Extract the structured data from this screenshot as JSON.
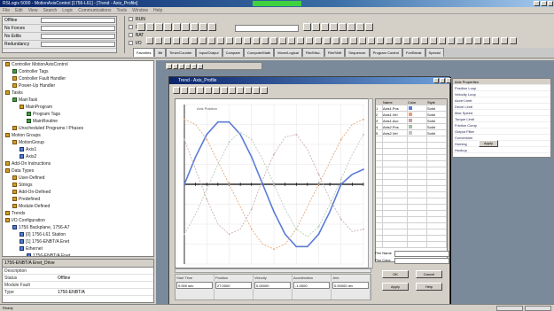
{
  "window": {
    "title": "RSLogix 5000 - MotionAxisControl [1756-L61] - [Trend - Axis_Profile]",
    "accent": "#0a246a",
    "run_indicator_color": "#3fd13f"
  },
  "menu": [
    "File",
    "Edit",
    "View",
    "Search",
    "Logic",
    "Communications",
    "Tools",
    "Window",
    "Help"
  ],
  "status_panel": {
    "rows": [
      {
        "label": "Offline",
        "value": ""
      },
      {
        "label": "No Forces",
        "value": ""
      },
      {
        "label": "No Edits",
        "value": ""
      },
      {
        "label": "Redundancy",
        "value": ""
      }
    ]
  },
  "quick_group": {
    "options": [
      "RUN",
      "OK",
      "BAT",
      "I/O"
    ]
  },
  "address_box": "",
  "tabs": [
    "Favorites",
    "Bit",
    "Timer/Counter",
    "Input/Output",
    "Compare",
    "Compute/Math",
    "Move/Logical",
    "File/Misc.",
    "File/Shift",
    "Sequencer",
    "Program Control",
    "For/Break",
    "Special"
  ],
  "tree": {
    "items": [
      {
        "label": "Controller MotionAxisControl",
        "indent": 0,
        "icon": "folder"
      },
      {
        "label": "Controller Tags",
        "indent": 1,
        "icon": "tag"
      },
      {
        "label": "Controller Fault Handler",
        "indent": 1,
        "icon": "folder"
      },
      {
        "label": "Power-Up Handler",
        "indent": 1,
        "icon": "folder"
      },
      {
        "label": "Tasks",
        "indent": 0,
        "icon": "folder"
      },
      {
        "label": "MainTask",
        "indent": 1,
        "icon": "task"
      },
      {
        "label": "MainProgram",
        "indent": 2,
        "icon": "folder"
      },
      {
        "label": "Program Tags",
        "indent": 3,
        "icon": "tag"
      },
      {
        "label": "MainRoutine",
        "indent": 3,
        "icon": "routine"
      },
      {
        "label": "Unscheduled Programs / Phases",
        "indent": 1,
        "icon": "folder"
      },
      {
        "label": "Motion Groups",
        "indent": 0,
        "icon": "folder"
      },
      {
        "label": "MotionGroup",
        "indent": 1,
        "icon": "folder"
      },
      {
        "label": "Axis1",
        "indent": 2,
        "icon": "axis"
      },
      {
        "label": "Axis2",
        "indent": 2,
        "icon": "axis"
      },
      {
        "label": "Add-On Instructions",
        "indent": 0,
        "icon": "folder"
      },
      {
        "label": "Data Types",
        "indent": 0,
        "icon": "folder"
      },
      {
        "label": "User-Defined",
        "indent": 1,
        "icon": "folder"
      },
      {
        "label": "Strings",
        "indent": 1,
        "icon": "folder"
      },
      {
        "label": "Add-On-Defined",
        "indent": 1,
        "icon": "folder"
      },
      {
        "label": "Predefined",
        "indent": 1,
        "icon": "folder"
      },
      {
        "label": "Module-Defined",
        "indent": 1,
        "icon": "folder"
      },
      {
        "label": "Trends",
        "indent": 0,
        "icon": "folder"
      },
      {
        "label": "I/O Configuration",
        "indent": 0,
        "icon": "folder"
      },
      {
        "label": "1756 Backplane, 1756-A7",
        "indent": 1,
        "icon": "backplane"
      },
      {
        "label": "[0] 1756-L61 Station",
        "indent": 2,
        "icon": "module"
      },
      {
        "label": "[1] 1756-ENBT/A Enet",
        "indent": 2,
        "icon": "module"
      },
      {
        "label": "Ethernet",
        "indent": 2,
        "icon": "network"
      },
      {
        "label": "1756-ENBT/A Enet",
        "indent": 3,
        "icon": "module"
      },
      {
        "label": "PowerFlex 700S-400V-ENETR Drive",
        "indent": 3,
        "icon": "drive"
      }
    ]
  },
  "props_panel": {
    "title": "1756-ENBT/A Enet_Drive",
    "rows": [
      {
        "key": "Description",
        "value": ""
      },
      {
        "key": "Status",
        "value": "Offline"
      },
      {
        "key": "Module Fault",
        "value": ""
      },
      {
        "key": "Type",
        "value": "1756-ENBT/A"
      }
    ]
  },
  "bg_table": {
    "header": "Axis Properties",
    "rows": [
      "Position Loop",
      "Velocity Loop",
      "Accel Limit",
      "Decel Limit",
      "Max Speed",
      "Torque Limit",
      "Friction Comp",
      "Output Filter",
      "Conversion",
      "Homing",
      "Hookup"
    ],
    "button_label": "Apply"
  },
  "dialog": {
    "title": "Trend - Axis_Profile",
    "tool_count": 12,
    "plot_label": "Axis Position",
    "table_header": [
      "",
      "Name",
      "Color",
      "Style"
    ],
    "table_rows": [
      {
        "n": "1",
        "name": "Axis1.Pos",
        "color": "#5a7cd8",
        "style": "Solid"
      },
      {
        "n": "2",
        "name": "Axis1.Vel",
        "color": "#e0a070",
        "style": "Solid"
      },
      {
        "n": "3",
        "name": "Axis1.Acc",
        "color": "#c0a0a0",
        "style": "Solid"
      },
      {
        "n": "4",
        "name": "Axis2.Pos",
        "color": "#a0c0a0",
        "style": "Solid"
      },
      {
        "n": "5",
        "name": "Axis2.Vel",
        "color": "#c0c0c0",
        "style": "Solid"
      }
    ],
    "readout": [
      {
        "label": "Start Time",
        "value": "0.000 sec"
      },
      {
        "label": "Position",
        "value": "27.0000"
      },
      {
        "label": "Velocity",
        "value": "0.00000"
      },
      {
        "label": "Acceleration",
        "value": "-1.0000"
      },
      {
        "label": "Jerk",
        "value": "0.00000 rev"
      }
    ],
    "fields": [
      {
        "label": "Pen Name",
        "value": ""
      },
      {
        "label": "Pen Color",
        "value": ""
      }
    ],
    "buttons": {
      "ok": "OK",
      "cancel": "Cancel",
      "apply": "Apply",
      "help": "Help"
    }
  },
  "chart_data": {
    "type": "line",
    "title": "",
    "xlabel": "",
    "ylabel": "",
    "x": [
      0,
      1,
      2,
      3,
      4,
      5,
      6,
      7,
      8,
      9,
      10,
      11,
      12,
      13,
      14,
      15,
      16
    ],
    "ylim": [
      -1.6,
      1.6
    ],
    "grid": true,
    "series": [
      {
        "name": "Axis1.Pos",
        "color": "#5a7cd8",
        "values": [
          0,
          0.55,
          1.0,
          1.25,
          1.25,
          1.0,
          0.55,
          0,
          -0.55,
          -1.0,
          -1.25,
          -1.25,
          -1.0,
          -0.55,
          0,
          0.2,
          0.3
        ]
      },
      {
        "name": "Axis1.Vel",
        "color": "#e0a070",
        "values": [
          1.3,
          1.2,
          0.9,
          0.45,
          0,
          -0.45,
          -0.9,
          -1.2,
          -1.3,
          -1.2,
          -0.9,
          -0.45,
          0,
          0.45,
          0.9,
          1.2,
          1.3
        ]
      },
      {
        "name": "Axis1.Acc",
        "color": "#c8a8a8",
        "values": [
          0.9,
          0.3,
          -0.3,
          -0.8,
          -1.0,
          -0.9,
          -0.5,
          0.1,
          0.6,
          0.95,
          1.0,
          0.7,
          0.2,
          -0.3,
          -0.7,
          -0.95,
          -0.9
        ]
      },
      {
        "name": "Axis2.Pos",
        "color": "#b0c8b0",
        "values": [
          -1.0,
          -0.6,
          -0.1,
          0.4,
          0.85,
          1.05,
          0.9,
          0.5,
          0,
          -0.5,
          -0.9,
          -1.05,
          -0.85,
          -0.4,
          0.1,
          0.6,
          1.0
        ]
      }
    ]
  },
  "statusbar": {
    "text": "Ready"
  }
}
